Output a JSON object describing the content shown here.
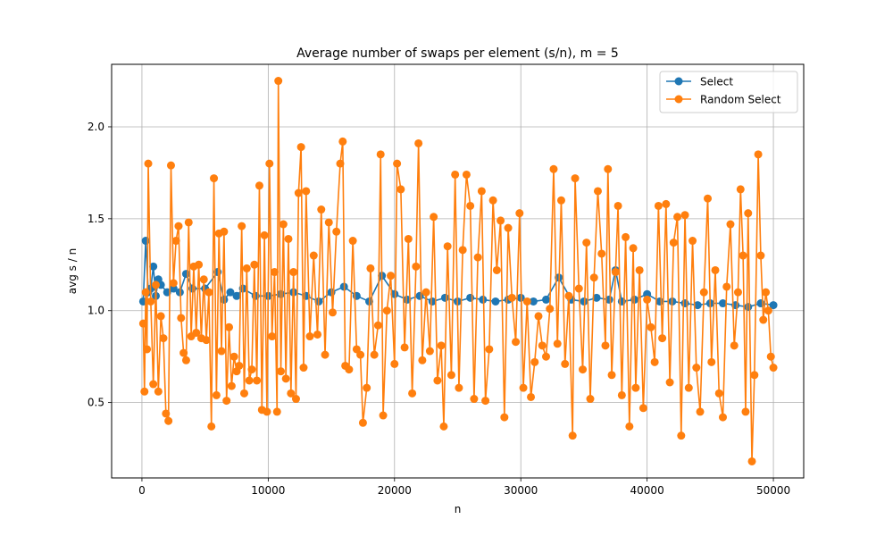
{
  "chart_data": {
    "type": "line",
    "title": "Average number of swaps per element (s/n), m = 5",
    "xlabel": "n",
    "ylabel": "avg s / n",
    "xlim": [
      -2400,
      52400
    ],
    "ylim": [
      0.09,
      2.34
    ],
    "xticks": [
      0,
      10000,
      20000,
      30000,
      40000,
      50000
    ],
    "yticks": [
      0.5,
      1.0,
      1.5,
      2.0
    ],
    "grid": true,
    "legend_position": "upper-right",
    "series": [
      {
        "name": "Select",
        "color": "#1f77b4",
        "points": [
          [
            100,
            1.05
          ],
          [
            300,
            1.38
          ],
          [
            500,
            1.1
          ],
          [
            700,
            1.12
          ],
          [
            900,
            1.24
          ],
          [
            1100,
            1.08
          ],
          [
            1300,
            1.17
          ],
          [
            1500,
            1.14
          ],
          [
            2000,
            1.1
          ],
          [
            2500,
            1.12
          ],
          [
            3000,
            1.1
          ],
          [
            3500,
            1.2
          ],
          [
            4000,
            1.12
          ],
          [
            5000,
            1.12
          ],
          [
            6000,
            1.21
          ],
          [
            6500,
            1.06
          ],
          [
            7000,
            1.1
          ],
          [
            7500,
            1.08
          ],
          [
            8000,
            1.12
          ],
          [
            9000,
            1.08
          ],
          [
            10000,
            1.08
          ],
          [
            11000,
            1.09
          ],
          [
            12000,
            1.1
          ],
          [
            13000,
            1.08
          ],
          [
            14000,
            1.05
          ],
          [
            15000,
            1.1
          ],
          [
            16000,
            1.13
          ],
          [
            17000,
            1.08
          ],
          [
            18000,
            1.05
          ],
          [
            19000,
            1.19
          ],
          [
            20000,
            1.09
          ],
          [
            21000,
            1.06
          ],
          [
            22000,
            1.08
          ],
          [
            23000,
            1.05
          ],
          [
            24000,
            1.07
          ],
          [
            25000,
            1.05
          ],
          [
            26000,
            1.07
          ],
          [
            27000,
            1.06
          ],
          [
            28000,
            1.05
          ],
          [
            29000,
            1.06
          ],
          [
            30000,
            1.07
          ],
          [
            31000,
            1.05
          ],
          [
            32000,
            1.06
          ],
          [
            33000,
            1.18
          ],
          [
            34000,
            1.06
          ],
          [
            35000,
            1.05
          ],
          [
            36000,
            1.07
          ],
          [
            37000,
            1.06
          ],
          [
            37500,
            1.22
          ],
          [
            38000,
            1.05
          ],
          [
            39000,
            1.06
          ],
          [
            40000,
            1.09
          ],
          [
            41000,
            1.05
          ],
          [
            42000,
            1.05
          ],
          [
            43000,
            1.04
          ],
          [
            44000,
            1.03
          ],
          [
            45000,
            1.04
          ],
          [
            46000,
            1.04
          ],
          [
            47000,
            1.03
          ],
          [
            48000,
            1.02
          ],
          [
            49000,
            1.04
          ],
          [
            50000,
            1.03
          ]
        ]
      },
      {
        "name": "Random Select",
        "color": "#ff7f0e",
        "points": [
          [
            100,
            0.93
          ],
          [
            200,
            0.56
          ],
          [
            300,
            1.1
          ],
          [
            400,
            0.79
          ],
          [
            500,
            1.8
          ],
          [
            700,
            1.05
          ],
          [
            900,
            0.6
          ],
          [
            1100,
            1.14
          ],
          [
            1300,
            0.56
          ],
          [
            1500,
            0.97
          ],
          [
            1700,
            0.85
          ],
          [
            1900,
            0.44
          ],
          [
            2100,
            0.4
          ],
          [
            2300,
            1.79
          ],
          [
            2500,
            1.15
          ],
          [
            2700,
            1.38
          ],
          [
            2900,
            1.46
          ],
          [
            3100,
            0.96
          ],
          [
            3300,
            0.77
          ],
          [
            3500,
            0.73
          ],
          [
            3700,
            1.48
          ],
          [
            3900,
            0.86
          ],
          [
            4100,
            1.24
          ],
          [
            4300,
            0.88
          ],
          [
            4500,
            1.25
          ],
          [
            4700,
            0.85
          ],
          [
            4900,
            1.17
          ],
          [
            5100,
            0.84
          ],
          [
            5300,
            1.1
          ],
          [
            5500,
            0.37
          ],
          [
            5700,
            1.72
          ],
          [
            5900,
            0.54
          ],
          [
            6100,
            1.42
          ],
          [
            6300,
            0.78
          ],
          [
            6500,
            1.43
          ],
          [
            6700,
            0.51
          ],
          [
            6900,
            0.91
          ],
          [
            7100,
            0.59
          ],
          [
            7300,
            0.75
          ],
          [
            7500,
            0.67
          ],
          [
            7700,
            0.7
          ],
          [
            7900,
            1.46
          ],
          [
            8100,
            0.55
          ],
          [
            8300,
            1.23
          ],
          [
            8500,
            0.62
          ],
          [
            8700,
            0.68
          ],
          [
            8900,
            1.25
          ],
          [
            9100,
            0.62
          ],
          [
            9300,
            1.68
          ],
          [
            9500,
            0.46
          ],
          [
            9700,
            1.41
          ],
          [
            9900,
            0.45
          ],
          [
            10100,
            1.8
          ],
          [
            10300,
            0.86
          ],
          [
            10500,
            1.21
          ],
          [
            10700,
            0.45
          ],
          [
            10800,
            2.25
          ],
          [
            11000,
            0.67
          ],
          [
            11200,
            1.47
          ],
          [
            11400,
            0.63
          ],
          [
            11600,
            1.39
          ],
          [
            11800,
            0.55
          ],
          [
            12000,
            1.21
          ],
          [
            12200,
            0.52
          ],
          [
            12400,
            1.64
          ],
          [
            12600,
            1.89
          ],
          [
            12800,
            0.69
          ],
          [
            13000,
            1.65
          ],
          [
            13300,
            0.86
          ],
          [
            13600,
            1.3
          ],
          [
            13900,
            0.87
          ],
          [
            14200,
            1.55
          ],
          [
            14500,
            0.76
          ],
          [
            14800,
            1.48
          ],
          [
            15100,
            0.99
          ],
          [
            15400,
            1.43
          ],
          [
            15700,
            1.8
          ],
          [
            15900,
            1.92
          ],
          [
            16100,
            0.7
          ],
          [
            16400,
            0.68
          ],
          [
            16700,
            1.38
          ],
          [
            17000,
            0.79
          ],
          [
            17300,
            0.76
          ],
          [
            17500,
            0.39
          ],
          [
            17800,
            0.58
          ],
          [
            18100,
            1.23
          ],
          [
            18400,
            0.76
          ],
          [
            18700,
            0.92
          ],
          [
            18900,
            1.85
          ],
          [
            19100,
            0.43
          ],
          [
            19400,
            1.0
          ],
          [
            19700,
            1.19
          ],
          [
            20000,
            0.71
          ],
          [
            20200,
            1.8
          ],
          [
            20500,
            1.66
          ],
          [
            20800,
            0.8
          ],
          [
            21100,
            1.39
          ],
          [
            21400,
            0.55
          ],
          [
            21700,
            1.24
          ],
          [
            21900,
            1.91
          ],
          [
            22200,
            0.73
          ],
          [
            22500,
            1.1
          ],
          [
            22800,
            0.78
          ],
          [
            23100,
            1.51
          ],
          [
            23400,
            0.62
          ],
          [
            23700,
            0.81
          ],
          [
            23900,
            0.37
          ],
          [
            24200,
            1.35
          ],
          [
            24500,
            0.65
          ],
          [
            24800,
            1.74
          ],
          [
            25100,
            0.58
          ],
          [
            25400,
            1.33
          ],
          [
            25700,
            1.74
          ],
          [
            26000,
            1.57
          ],
          [
            26300,
            0.52
          ],
          [
            26600,
            1.29
          ],
          [
            26900,
            1.65
          ],
          [
            27200,
            0.51
          ],
          [
            27500,
            0.79
          ],
          [
            27800,
            1.6
          ],
          [
            28100,
            1.22
          ],
          [
            28400,
            1.49
          ],
          [
            28700,
            0.42
          ],
          [
            29000,
            1.45
          ],
          [
            29300,
            1.07
          ],
          [
            29600,
            0.83
          ],
          [
            29900,
            1.53
          ],
          [
            30200,
            0.58
          ],
          [
            30500,
            1.05
          ],
          [
            30800,
            0.53
          ],
          [
            31100,
            0.72
          ],
          [
            31400,
            0.97
          ],
          [
            31700,
            0.81
          ],
          [
            32000,
            0.75
          ],
          [
            32300,
            1.01
          ],
          [
            32600,
            1.77
          ],
          [
            32900,
            0.82
          ],
          [
            33200,
            1.6
          ],
          [
            33500,
            0.71
          ],
          [
            33800,
            1.08
          ],
          [
            34100,
            0.32
          ],
          [
            34300,
            1.72
          ],
          [
            34600,
            1.12
          ],
          [
            34900,
            0.68
          ],
          [
            35200,
            1.37
          ],
          [
            35500,
            0.52
          ],
          [
            35800,
            1.18
          ],
          [
            36100,
            1.65
          ],
          [
            36400,
            1.31
          ],
          [
            36700,
            0.81
          ],
          [
            36900,
            1.77
          ],
          [
            37200,
            0.65
          ],
          [
            37500,
            1.21
          ],
          [
            37700,
            1.57
          ],
          [
            38000,
            0.54
          ],
          [
            38300,
            1.4
          ],
          [
            38600,
            0.37
          ],
          [
            38900,
            1.34
          ],
          [
            39100,
            0.58
          ],
          [
            39400,
            1.22
          ],
          [
            39700,
            0.47
          ],
          [
            40000,
            1.06
          ],
          [
            40300,
            0.91
          ],
          [
            40600,
            0.72
          ],
          [
            40900,
            1.57
          ],
          [
            41200,
            0.85
          ],
          [
            41500,
            1.58
          ],
          [
            41800,
            0.61
          ],
          [
            42100,
            1.37
          ],
          [
            42400,
            1.51
          ],
          [
            42700,
            0.32
          ],
          [
            43000,
            1.52
          ],
          [
            43300,
            0.58
          ],
          [
            43600,
            1.38
          ],
          [
            43900,
            0.69
          ],
          [
            44200,
            0.45
          ],
          [
            44500,
            1.1
          ],
          [
            44800,
            1.61
          ],
          [
            45100,
            0.72
          ],
          [
            45400,
            1.22
          ],
          [
            45700,
            0.55
          ],
          [
            46000,
            0.42
          ],
          [
            46300,
            1.13
          ],
          [
            46600,
            1.47
          ],
          [
            46900,
            0.81
          ],
          [
            47200,
            1.1
          ],
          [
            47400,
            1.66
          ],
          [
            47600,
            1.3
          ],
          [
            47800,
            0.45
          ],
          [
            48000,
            1.53
          ],
          [
            48300,
            0.18
          ],
          [
            48500,
            0.65
          ],
          [
            48800,
            1.85
          ],
          [
            49000,
            1.3
          ],
          [
            49200,
            0.95
          ],
          [
            49400,
            1.1
          ],
          [
            49600,
            1.0
          ],
          [
            49800,
            0.75
          ],
          [
            50000,
            0.69
          ]
        ]
      }
    ]
  }
}
